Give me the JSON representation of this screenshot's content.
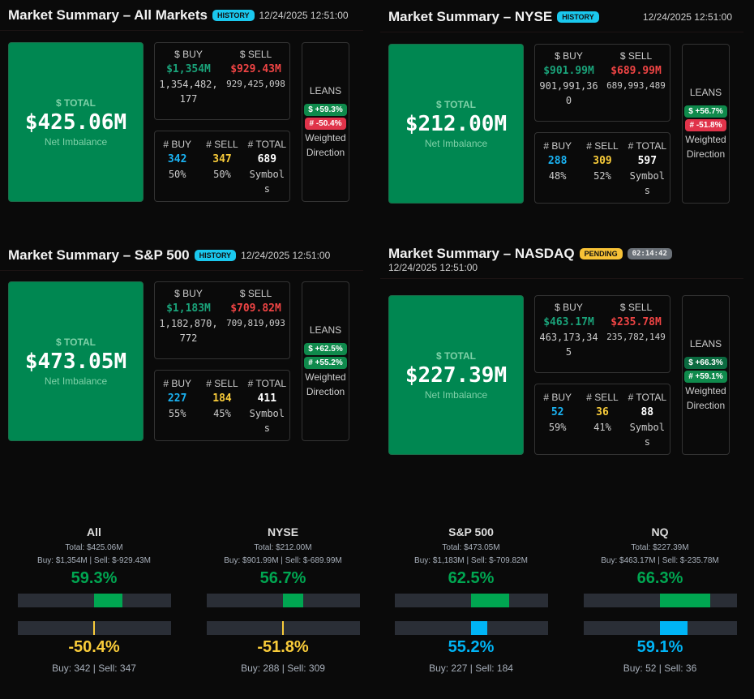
{
  "panels": [
    {
      "title": "Market Summary – All Markets",
      "badge": "HISTORY",
      "timestamp": "12/24/2025 12:51:00",
      "total_label": "$ TOTAL",
      "total": "$425.06M",
      "total_sub": "Net Imbalance",
      "buy_label": "$ BUY",
      "sell_label": "$ SELL",
      "buy": "$1,354M",
      "sell": "$929.43M",
      "buy_full": "1,354,482,177",
      "sell_full": "929,425,098",
      "cbuy_label": "# BUY",
      "csell_label": "# SELL",
      "ctotal_label": "# TOTAL",
      "cbuy": "342",
      "csell": "347",
      "ctotal": "689",
      "cbuy_pct": "50%",
      "csell_pct": "50%",
      "symbols": "Symbols",
      "leans_label": "LEANS",
      "lean_dollar": "$ +59.3%",
      "lean_count": "# -50.4%",
      "weighted": "Weighted Direction"
    },
    {
      "title": "Market Summary – NYSE",
      "badge": "HISTORY",
      "timestamp": "12/24/2025 12:51:00",
      "total_label": "$ TOTAL",
      "total": "$212.00M",
      "total_sub": "Net Imbalance",
      "buy_label": "$ BUY",
      "sell_label": "$ SELL",
      "buy": "$901.99M",
      "sell": "$689.99M",
      "buy_full": "901,991,360",
      "sell_full": "689,993,489",
      "cbuy_label": "# BUY",
      "csell_label": "# SELL",
      "ctotal_label": "# TOTAL",
      "cbuy": "288",
      "csell": "309",
      "ctotal": "597",
      "cbuy_pct": "48%",
      "csell_pct": "52%",
      "symbols": "Symbols",
      "leans_label": "LEANS",
      "lean_dollar": "$ +56.7%",
      "lean_count": "# -51.8%",
      "weighted": "Weighted Direction"
    },
    {
      "title": "Market Summary – S&P 500",
      "badge": "HISTORY",
      "timestamp": "12/24/2025 12:51:00",
      "total_label": "$ TOTAL",
      "total": "$473.05M",
      "total_sub": "Net Imbalance",
      "buy_label": "$ BUY",
      "sell_label": "$ SELL",
      "buy": "$1,183M",
      "sell": "$709.82M",
      "buy_full": "1,182,870,772",
      "sell_full": "709,819,093",
      "cbuy_label": "# BUY",
      "csell_label": "# SELL",
      "ctotal_label": "# TOTAL",
      "cbuy": "227",
      "csell": "184",
      "ctotal": "411",
      "cbuy_pct": "55%",
      "csell_pct": "45%",
      "symbols": "Symbols",
      "leans_label": "LEANS",
      "lean_dollar": "$ +62.5%",
      "lean_count": "# +55.2%",
      "weighted": "Weighted Direction"
    },
    {
      "title": "Market Summary – NASDAQ",
      "badge": "PENDING",
      "timer": "02:14:42",
      "timestamp": "12/24/2025 12:51:00",
      "total_label": "$ TOTAL",
      "total": "$227.39M",
      "total_sub": "Net Imbalance",
      "buy_label": "$ BUY",
      "sell_label": "$ SELL",
      "buy": "$463.17M",
      "sell": "$235.78M",
      "buy_full": "463,173,345",
      "sell_full": "235,782,149",
      "cbuy_label": "# BUY",
      "csell_label": "# SELL",
      "ctotal_label": "# TOTAL",
      "cbuy": "52",
      "csell": "36",
      "ctotal": "88",
      "cbuy_pct": "59%",
      "csell_pct": "41%",
      "symbols": "Symbols",
      "leans_label": "LEANS",
      "lean_dollar": "$ +66.3%",
      "lean_count": "# +59.1%",
      "weighted": "Weighted Direction"
    }
  ],
  "summary": [
    {
      "name": "All",
      "total": "Total: $425.06M",
      "buy": "Buy: $1,354M",
      "sell": "Sell: $-929.43M",
      "dollar_pct": "59.3%",
      "dollar_value": 59.3,
      "count_pct": "-50.4%",
      "count_value": -50.4,
      "count_buy": "Buy: 342",
      "count_sell": "Sell: 347"
    },
    {
      "name": "NYSE",
      "total": "Total: $212.00M",
      "buy": "Buy: $901.99M",
      "sell": "Sell: $-689.99M",
      "dollar_pct": "56.7%",
      "dollar_value": 56.7,
      "count_pct": "-51.8%",
      "count_value": -51.8,
      "count_buy": "Buy: 288",
      "count_sell": "Sell: 309"
    },
    {
      "name": "S&P 500",
      "total": "Total: $473.05M",
      "buy": "Buy: $1,183M",
      "sell": "Sell: $-709.82M",
      "dollar_pct": "62.5%",
      "dollar_value": 62.5,
      "count_pct": "55.2%",
      "count_value": 55.2,
      "count_buy": "Buy: 227",
      "count_sell": "Sell: 184"
    },
    {
      "name": "NQ",
      "total": "Total: $227.39M",
      "buy": "Buy: $463.17M",
      "sell": "Sell: $-235.78M",
      "dollar_pct": "66.3%",
      "dollar_value": 66.3,
      "count_pct": "59.1%",
      "count_value": 59.1,
      "count_buy": "Buy: 52",
      "count_sell": "Sell: 36"
    }
  ],
  "colors": {
    "positive": "#00a651",
    "count_positive": "#00b4f5",
    "count_negative": "#f9cc3a",
    "bar_track": "#2a2e36"
  }
}
